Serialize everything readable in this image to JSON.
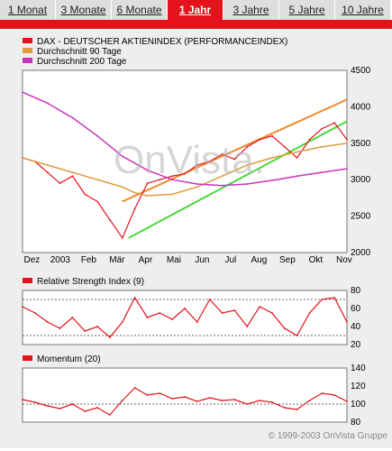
{
  "tabs": [
    {
      "label": "1 Monat",
      "active": false
    },
    {
      "label": "3 Monate",
      "active": false
    },
    {
      "label": "6 Monate",
      "active": false
    },
    {
      "label": "1 Jahr",
      "active": true
    },
    {
      "label": "3 Jahre",
      "active": false
    },
    {
      "label": "5 Jahre",
      "active": false
    },
    {
      "label": "10 Jahre",
      "active": false
    }
  ],
  "colors": {
    "accent": "#e4121a",
    "dax": "#e4121a",
    "ma90": "#e09a3c",
    "ma200": "#cc33bb",
    "trend_up": "#4ad93a",
    "trend_upper": "#f08a2a",
    "bg": "#eeeeee"
  },
  "watermark": "OnVista.",
  "copyright": "© 1999-2003 OnVista Gruppe",
  "chart_data": [
    {
      "type": "line",
      "legend": [
        "DAX  - DEUTSCHER AKTIENINDEX (PERFORMANCEINDEX)",
        "Durchschnitt 90 Tage",
        "Durchschnitt 200 Tage"
      ],
      "x_ticks": [
        "Dez",
        "2003",
        "Feb",
        "Mär",
        "Apr",
        "Mai",
        "Jun",
        "Jul",
        "Aug",
        "Sep",
        "Okt",
        "Nov"
      ],
      "y_ticks": [
        2000,
        2500,
        3000,
        3500,
        4000,
        4500
      ],
      "ylim": [
        2000,
        4500
      ],
      "series": [
        {
          "name": "DAX  - DEUTSCHER AKTIENINDEX (PERFORMANCEINDEX)",
          "x": [
            0,
            2,
            4,
            6,
            8,
            10,
            12,
            14,
            16,
            18,
            20,
            22,
            24,
            26,
            28,
            30,
            32,
            34,
            36,
            38,
            40,
            42,
            44,
            46,
            48,
            50,
            52
          ],
          "values": [
            3300,
            3250,
            3100,
            2950,
            3050,
            2800,
            2700,
            2450,
            2200,
            2600,
            2950,
            3000,
            3050,
            3080,
            3200,
            3250,
            3350,
            3280,
            3450,
            3550,
            3600,
            3450,
            3300,
            3550,
            3700,
            3780,
            3550
          ]
        },
        {
          "name": "Durchschnitt 90 Tage",
          "x": [
            0,
            4,
            8,
            12,
            14,
            16,
            18,
            20,
            24,
            28,
            32,
            36,
            40,
            44,
            48,
            52
          ],
          "values": [
            3300,
            3200,
            3100,
            3000,
            2950,
            2900,
            2820,
            2780,
            2800,
            2900,
            3050,
            3200,
            3300,
            3380,
            3450,
            3500
          ]
        },
        {
          "name": "Durchschnitt 200 Tage",
          "x": [
            0,
            4,
            8,
            12,
            16,
            20,
            24,
            28,
            32,
            36,
            40,
            44,
            48,
            52
          ],
          "values": [
            4200,
            4050,
            3850,
            3600,
            3320,
            3130,
            3000,
            2940,
            2920,
            2940,
            2990,
            3050,
            3100,
            3150
          ]
        }
      ],
      "trendlines": [
        {
          "x": [
            17,
            52
          ],
          "values": [
            2200,
            3800
          ]
        },
        {
          "x": [
            16,
            52
          ],
          "values": [
            2700,
            4100
          ]
        }
      ]
    },
    {
      "type": "line",
      "legend": [
        "Relative Strength Index (9)"
      ],
      "y_ticks": [
        20,
        40,
        60,
        80
      ],
      "ylim": [
        20,
        80
      ],
      "reference_lines": [
        30,
        70
      ],
      "series": [
        {
          "name": "Relative Strength Index (9)",
          "x": [
            0,
            2,
            4,
            6,
            8,
            10,
            12,
            14,
            16,
            18,
            20,
            22,
            24,
            26,
            28,
            30,
            32,
            34,
            36,
            38,
            40,
            42,
            44,
            46,
            48,
            50,
            52
          ],
          "values": [
            62,
            55,
            45,
            38,
            50,
            35,
            40,
            28,
            45,
            72,
            50,
            55,
            48,
            60,
            45,
            70,
            55,
            58,
            40,
            62,
            55,
            38,
            30,
            55,
            70,
            72,
            45
          ]
        }
      ]
    },
    {
      "type": "line",
      "legend": [
        "Momentum (20)"
      ],
      "y_ticks": [
        80,
        100,
        120,
        140
      ],
      "ylim": [
        80,
        140
      ],
      "reference_lines": [
        100
      ],
      "series": [
        {
          "name": "Momentum (20)",
          "x": [
            0,
            2,
            4,
            6,
            8,
            10,
            12,
            14,
            16,
            18,
            20,
            22,
            24,
            26,
            28,
            30,
            32,
            34,
            36,
            38,
            40,
            42,
            44,
            46,
            48,
            50,
            52
          ],
          "values": [
            105,
            102,
            98,
            95,
            100,
            92,
            96,
            88,
            104,
            118,
            110,
            112,
            106,
            108,
            103,
            107,
            104,
            105,
            100,
            104,
            102,
            96,
            94,
            104,
            112,
            110,
            103
          ]
        }
      ]
    }
  ]
}
